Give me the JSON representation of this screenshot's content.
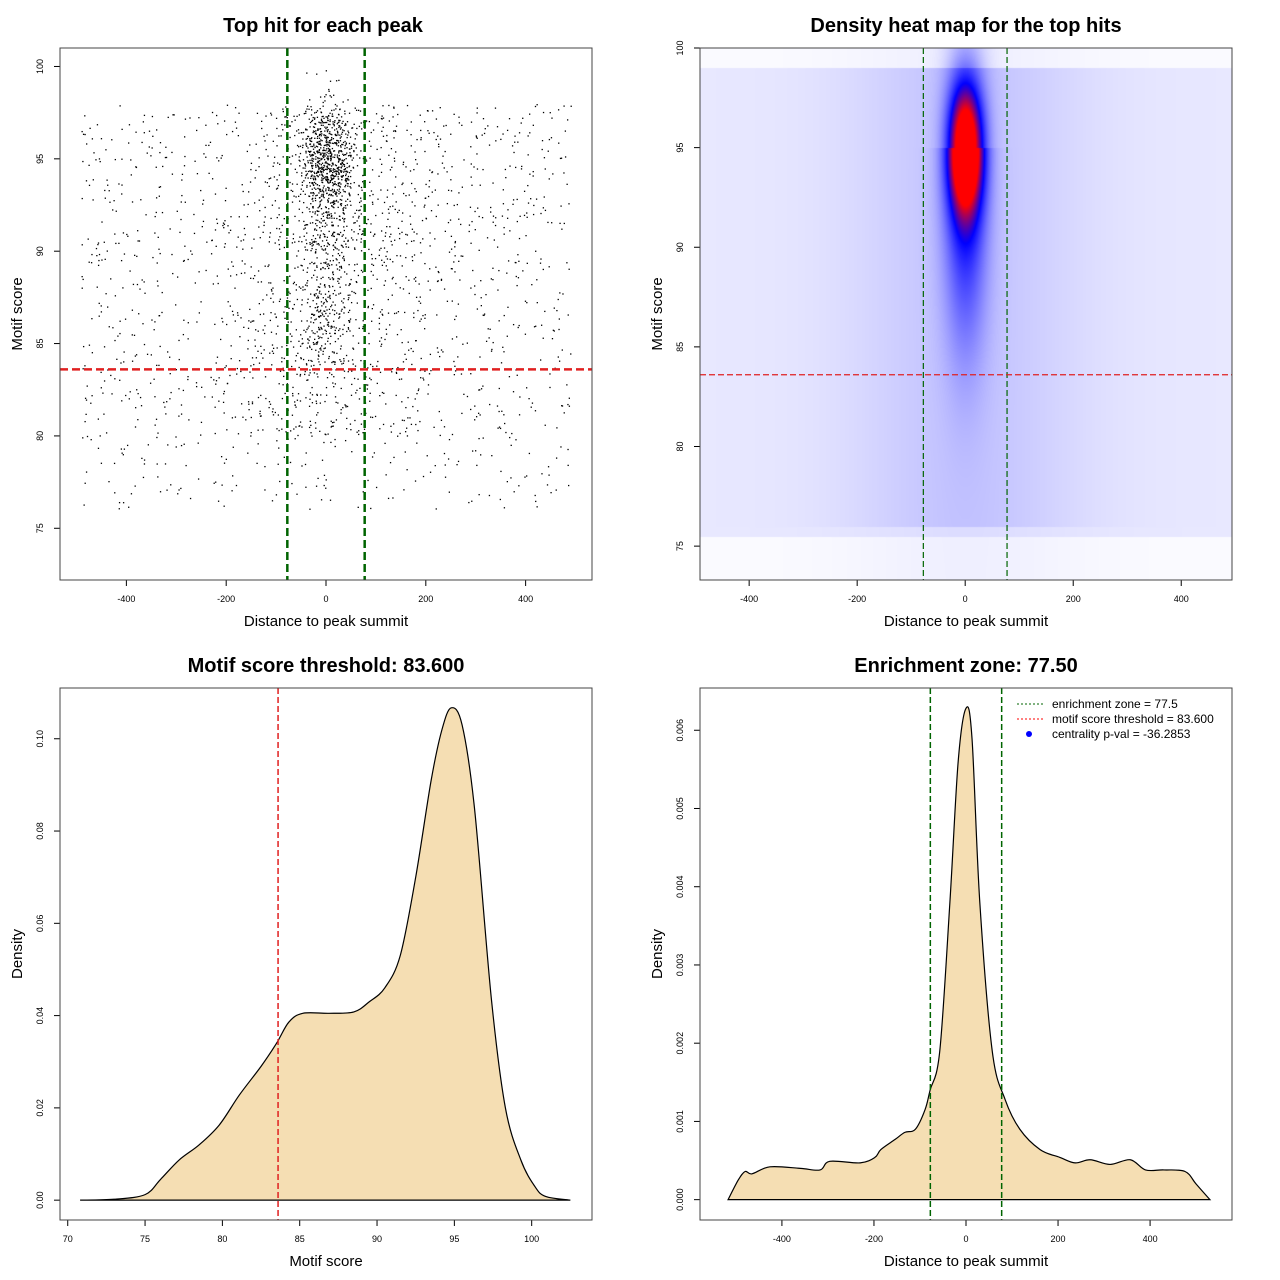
{
  "chart_data": [
    {
      "type": "scatter",
      "title": "Top hit for each peak",
      "xlabel": "Distance to peak summit",
      "ylabel": "Motif score",
      "xlim": [
        -533,
        533
      ],
      "ylim": [
        72.2,
        101.0
      ],
      "xticks": [
        -400,
        -200,
        0,
        200,
        400
      ],
      "yticks": [
        75,
        80,
        85,
        90,
        95,
        100
      ],
      "vlines": [
        -77.5,
        77.5
      ],
      "vline_color": "#006400",
      "hline": 83.6,
      "hline_color": "#e02020",
      "point_color": "#000000",
      "series": [
        {
          "description_of_points": "",
          "cluster_center": [
            0,
            95
          ]
        }
      ]
    },
    {
      "type": "heatmap",
      "title": "Density heat map for the top hits",
      "xlabel": "Distance to peak summit",
      "ylabel": "Motif score",
      "xlim": [
        -491,
        494
      ],
      "ylim": [
        73.3,
        100
      ],
      "xticks": [
        -400,
        -200,
        0,
        200,
        400
      ],
      "yticks": [
        75,
        80,
        85,
        90,
        95,
        100
      ],
      "peak": [
        0,
        95
      ],
      "colors": [
        "#ffffff",
        "#0000ff",
        "#ff0000"
      ],
      "vlines": [
        -77.5,
        77.5
      ],
      "hline": 83.6
    },
    {
      "type": "area",
      "title": "Motif score threshold: 83.600",
      "xlabel": "Motif score",
      "ylabel": "Density",
      "xlim": [
        69.5,
        103.9
      ],
      "ylim": [
        -0.0043,
        0.111
      ],
      "xticks": [
        70,
        75,
        80,
        85,
        90,
        95,
        100
      ],
      "yticks": [
        "0.00",
        "0.02",
        "0.04",
        "0.06",
        "0.08",
        "0.10"
      ],
      "vline": 83.6,
      "fill": "#f5deb3",
      "x": [
        70.8,
        73,
        75,
        76,
        77.2,
        78.5,
        79.8,
        81.1,
        82.5,
        83.5,
        84.3,
        85.2,
        86.9,
        88.5,
        89.5,
        90.5,
        91.5,
        92.5,
        93.5,
        94.2,
        94.8,
        95.5,
        96.3,
        97.4,
        98.3,
        99.3,
        100.2,
        100.9,
        102.5
      ],
      "y": [
        0,
        0.0002,
        0.0012,
        0.0045,
        0.0087,
        0.012,
        0.0163,
        0.0228,
        0.029,
        0.034,
        0.0386,
        0.0405,
        0.0405,
        0.0408,
        0.043,
        0.046,
        0.053,
        0.07,
        0.091,
        0.102,
        0.1067,
        0.103,
        0.085,
        0.0434,
        0.02,
        0.0087,
        0.003,
        0.0008,
        0
      ]
    },
    {
      "type": "area",
      "title": "Enrichment zone: 77.50",
      "xlabel": "Distance to peak summit",
      "ylabel": "Density",
      "xlim": [
        -578,
        578
      ],
      "ylim": [
        -0.00026,
        0.00654
      ],
      "xticks": [
        -400,
        -200,
        0,
        200,
        400
      ],
      "yticks": [
        "0.000",
        "0.001",
        "0.002",
        "0.003",
        "0.004",
        "0.005",
        "0.006"
      ],
      "vlines": [
        -77.5,
        77.5
      ],
      "fill": "#f5deb3",
      "legend": {
        "position": "top-right",
        "entries": [
          {
            "label": "enrichment zone = 77.5",
            "color": "#006400",
            "style": "dotted"
          },
          {
            "label": "motif score threshold = 83.600",
            "color": "#ff0000",
            "style": "dotted"
          },
          {
            "label": "centrality p-val = -36.2853",
            "color": "#0000ff",
            "style": "point"
          }
        ]
      },
      "x": [
        -517,
        -495,
        -480,
        -465,
        -426,
        -360,
        -317,
        -296,
        -230,
        -198,
        -185,
        -154,
        -133,
        -110,
        -89,
        -78,
        -57,
        -35,
        -17,
        0,
        13,
        30,
        57,
        85,
        117,
        161,
        204,
        237,
        270,
        313,
        357,
        390,
        430,
        476,
        500,
        530
      ],
      "y": [
        0,
        0.00025,
        0.00036,
        0.00033,
        0.00042,
        0.0004,
        0.00038,
        0.00049,
        0.00047,
        0.00054,
        0.00064,
        0.00077,
        0.00086,
        0.0009,
        0.00115,
        0.0014,
        0.0019,
        0.0038,
        0.0056,
        0.00628,
        0.0059,
        0.0038,
        0.0019,
        0.00128,
        0.0009,
        0.00064,
        0.00054,
        0.00047,
        0.00051,
        0.00045,
        0.00051,
        0.00038,
        0.00038,
        0.00036,
        0.0002,
        0
      ]
    }
  ]
}
